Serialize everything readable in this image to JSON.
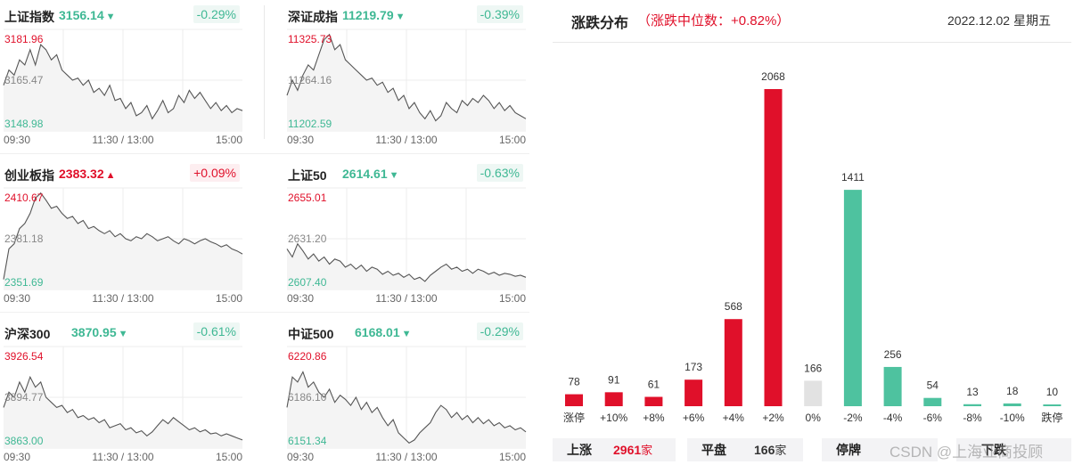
{
  "indices": [
    {
      "name": "上证指数",
      "value": "3156.14",
      "dir": "down",
      "change": "-0.29%",
      "high": "3181.96",
      "mid": "3165.47",
      "low": "3148.98",
      "t0": "09:30",
      "t1": "11:30 / 13:00",
      "t2": "15:00",
      "series": [
        0.55,
        0.4,
        0.45,
        0.3,
        0.35,
        0.2,
        0.35,
        0.15,
        0.2,
        0.3,
        0.25,
        0.4,
        0.45,
        0.5,
        0.48,
        0.55,
        0.5,
        0.62,
        0.58,
        0.65,
        0.55,
        0.7,
        0.68,
        0.78,
        0.72,
        0.85,
        0.82,
        0.75,
        0.88,
        0.8,
        0.7,
        0.82,
        0.78,
        0.65,
        0.72,
        0.6,
        0.68,
        0.62,
        0.7,
        0.78,
        0.72,
        0.8,
        0.75,
        0.82,
        0.78,
        0.8
      ]
    },
    {
      "name": "深证成指",
      "value": "11219.79",
      "dir": "down",
      "change": "-0.39%",
      "high": "11325.73",
      "mid": "11264.16",
      "low": "11202.59",
      "t0": "09:30",
      "t1": "11:30 / 13:00",
      "t2": "15:00",
      "series": [
        0.65,
        0.5,
        0.6,
        0.45,
        0.35,
        0.4,
        0.25,
        0.1,
        0.05,
        0.2,
        0.15,
        0.3,
        0.35,
        0.4,
        0.45,
        0.5,
        0.48,
        0.55,
        0.52,
        0.62,
        0.58,
        0.7,
        0.65,
        0.78,
        0.72,
        0.82,
        0.88,
        0.8,
        0.9,
        0.85,
        0.72,
        0.78,
        0.82,
        0.7,
        0.75,
        0.68,
        0.72,
        0.65,
        0.7,
        0.78,
        0.72,
        0.8,
        0.75,
        0.82,
        0.85,
        0.88
      ]
    },
    {
      "name": "创业板指",
      "value": "2383.32",
      "dir": "up",
      "change": "+0.09%",
      "high": "2410.67",
      "mid": "2381.18",
      "low": "2351.69",
      "t0": "09:30",
      "t1": "11:30 / 13:00",
      "t2": "15:00",
      "series": [
        0.9,
        0.6,
        0.55,
        0.4,
        0.35,
        0.25,
        0.1,
        0.05,
        0.12,
        0.2,
        0.18,
        0.25,
        0.3,
        0.28,
        0.35,
        0.32,
        0.4,
        0.38,
        0.42,
        0.45,
        0.42,
        0.48,
        0.45,
        0.5,
        0.52,
        0.48,
        0.5,
        0.45,
        0.48,
        0.52,
        0.5,
        0.48,
        0.52,
        0.55,
        0.5,
        0.52,
        0.55,
        0.52,
        0.5,
        0.53,
        0.55,
        0.58,
        0.56,
        0.6,
        0.62,
        0.65
      ]
    },
    {
      "name": "上证50",
      "value": "2614.61",
      "dir": "down",
      "change": "-0.63%",
      "high": "2655.01",
      "mid": "2631.20",
      "low": "2607.40",
      "t0": "09:30",
      "t1": "11:30 / 13:00",
      "t2": "15:00",
      "series": [
        0.6,
        0.68,
        0.55,
        0.62,
        0.7,
        0.65,
        0.72,
        0.68,
        0.75,
        0.7,
        0.72,
        0.78,
        0.75,
        0.8,
        0.76,
        0.82,
        0.78,
        0.8,
        0.85,
        0.82,
        0.86,
        0.84,
        0.88,
        0.85,
        0.9,
        0.88,
        0.92,
        0.86,
        0.82,
        0.78,
        0.75,
        0.8,
        0.78,
        0.82,
        0.8,
        0.84,
        0.8,
        0.82,
        0.85,
        0.83,
        0.86,
        0.84,
        0.85,
        0.87,
        0.86,
        0.88
      ]
    },
    {
      "name": "沪深300",
      "value": "3870.95",
      "dir": "down",
      "change": "-0.61%",
      "high": "3926.54",
      "mid": "3894.77",
      "low": "3863.00",
      "t0": "09:30",
      "t1": "11:30 / 13:00",
      "t2": "15:00",
      "series": [
        0.6,
        0.45,
        0.5,
        0.35,
        0.45,
        0.3,
        0.4,
        0.35,
        0.5,
        0.55,
        0.6,
        0.58,
        0.65,
        0.62,
        0.7,
        0.68,
        0.72,
        0.7,
        0.75,
        0.72,
        0.8,
        0.78,
        0.76,
        0.82,
        0.8,
        0.85,
        0.83,
        0.88,
        0.84,
        0.78,
        0.72,
        0.76,
        0.7,
        0.74,
        0.78,
        0.82,
        0.8,
        0.84,
        0.82,
        0.86,
        0.85,
        0.88,
        0.86,
        0.88,
        0.9,
        0.92
      ]
    },
    {
      "name": "中证500",
      "value": "6168.01",
      "dir": "down",
      "change": "-0.29%",
      "high": "6220.86",
      "mid": "6186.10",
      "low": "6151.34",
      "t0": "09:30",
      "t1": "11:30 / 13:00",
      "t2": "15:00",
      "series": [
        0.6,
        0.3,
        0.35,
        0.25,
        0.4,
        0.35,
        0.45,
        0.5,
        0.42,
        0.55,
        0.48,
        0.52,
        0.58,
        0.5,
        0.62,
        0.55,
        0.65,
        0.6,
        0.7,
        0.78,
        0.72,
        0.85,
        0.9,
        0.95,
        0.92,
        0.85,
        0.8,
        0.75,
        0.65,
        0.58,
        0.62,
        0.7,
        0.65,
        0.72,
        0.68,
        0.75,
        0.7,
        0.76,
        0.72,
        0.78,
        0.75,
        0.8,
        0.78,
        0.82,
        0.8,
        0.84
      ]
    }
  ],
  "distribution": {
    "title": "涨跌分布",
    "median": "（涨跌中位数：+0.82%）",
    "date": "2022.12.02 星期五",
    "summary": [
      {
        "label": "上涨",
        "count": "2961",
        "unit": "家",
        "color": "#e0102a"
      },
      {
        "label": "平盘",
        "count": "166",
        "unit": "家",
        "color": "#333333"
      },
      {
        "label": "停牌",
        "count": "",
        "unit": "",
        "color": "#333333"
      },
      {
        "label": "下跌",
        "count": "",
        "unit": "",
        "color": "#3fb894"
      }
    ],
    "watermark": "CSDN @上海亚商投顾"
  },
  "chart_data": {
    "type": "bar",
    "title": "涨跌分布",
    "categories": [
      "涨停",
      "+10%",
      "+8%",
      "+6%",
      "+4%",
      "+2%",
      "0%",
      "-2%",
      "-4%",
      "-6%",
      "-8%",
      "-10%",
      "跌停"
    ],
    "values": [
      78,
      91,
      61,
      173,
      568,
      2068,
      166,
      1411,
      256,
      54,
      13,
      18,
      10
    ],
    "value_labels": [
      "78",
      "91",
      "61",
      "173",
      "568",
      "2068",
      "166",
      "1411",
      "256",
      "54",
      "13",
      "18",
      "10"
    ],
    "colors": [
      "#e0102a",
      "#e0102a",
      "#e0102a",
      "#e0102a",
      "#e0102a",
      "#e0102a",
      "#e2e2e2",
      "#4ec29f",
      "#4ec29f",
      "#4ec29f",
      "#4ec29f",
      "#4ec29f",
      "#4ec29f"
    ],
    "ylim": [
      0,
      2068
    ],
    "grid": false
  }
}
